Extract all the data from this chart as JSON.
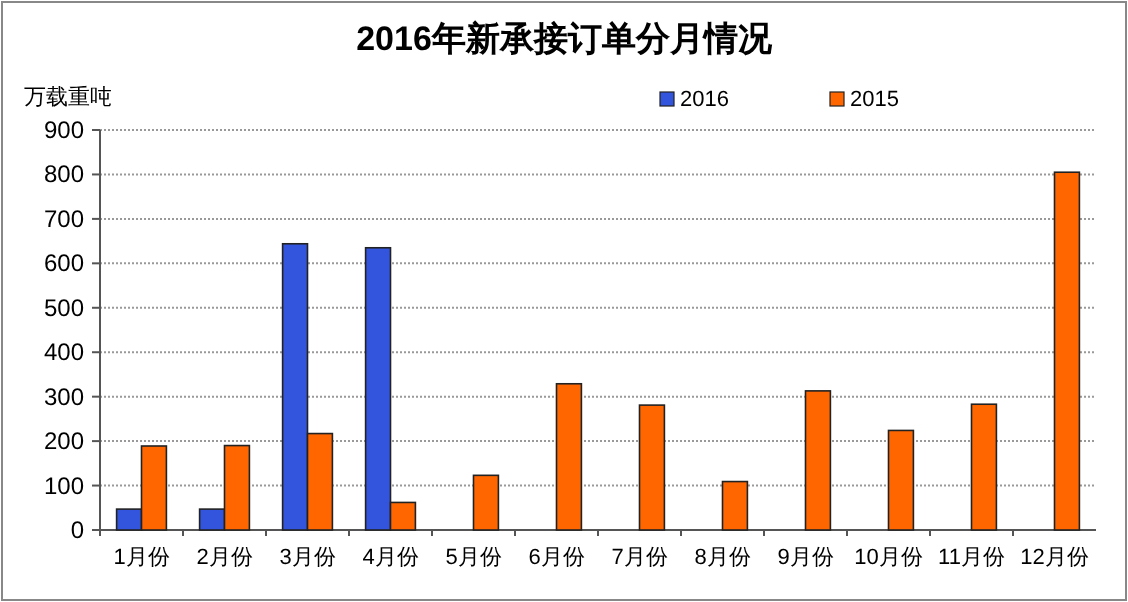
{
  "chart_data": {
    "type": "bar",
    "title": "2016年新承接订单分月情况",
    "ylabel": "万载重吨",
    "categories": [
      "1月份",
      "2月份",
      "3月份",
      "4月份",
      "5月份",
      "6月份",
      "7月份",
      "8月份",
      "9月份",
      "10月份",
      "11月份",
      "12月份"
    ],
    "series": [
      {
        "name": "2016",
        "color": "#3355dd",
        "values": [
          47,
          47,
          644,
          635,
          null,
          null,
          null,
          null,
          null,
          null,
          null,
          null
        ]
      },
      {
        "name": "2015",
        "color": "#ff6600",
        "values": [
          189,
          190,
          217,
          62,
          123,
          329,
          281,
          109,
          313,
          224,
          283,
          805
        ]
      }
    ],
    "ylim": [
      0,
      900
    ],
    "yticks": [
      0,
      100,
      200,
      300,
      400,
      500,
      600,
      700,
      800,
      900
    ],
    "grid": "y",
    "legend": "top right"
  }
}
